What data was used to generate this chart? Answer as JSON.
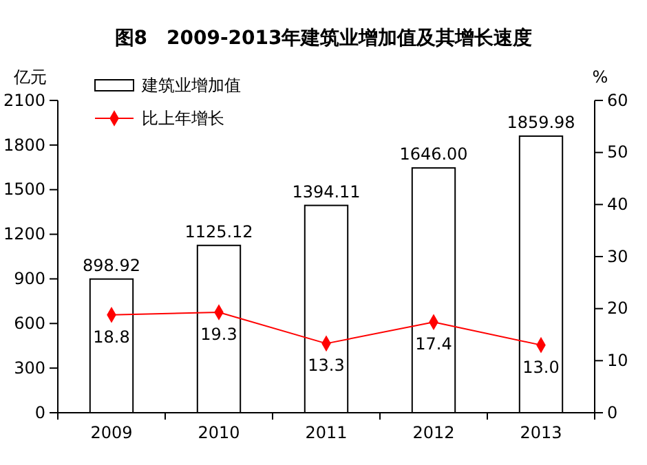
{
  "chart_data": {
    "type": "bar",
    "title": "图8　2009-2013年建筑业增加值及其增长速度",
    "ylabel": "亿元",
    "y2label": "%",
    "categories": [
      "2009",
      "2010",
      "2011",
      "2012",
      "2013"
    ],
    "series": [
      {
        "name": "建筑业增加值",
        "color": "#ffffff",
        "values": [
          898.92,
          1125.12,
          1394.11,
          1646.0,
          1859.98
        ],
        "value_labels": [
          "898.92",
          "1125.12",
          "1394.11",
          "1646.00",
          "1859.98"
        ]
      },
      {
        "name": "比上年增长",
        "type": "line",
        "axis": "y2",
        "color": "#ff0000",
        "marker": "diamond",
        "values": [
          18.8,
          19.3,
          13.3,
          17.4,
          13.0
        ],
        "value_labels": [
          "18.8",
          "19.3",
          "13.3",
          "17.4",
          "13.0"
        ]
      }
    ],
    "ylim": [
      0,
      2100
    ],
    "yticks": [
      0,
      300,
      600,
      900,
      1200,
      1500,
      1800,
      2100
    ],
    "y2lim": [
      0,
      60
    ],
    "y2ticks": [
      0,
      10,
      20,
      30,
      40,
      50,
      60
    ],
    "legend": "top left",
    "grid": false
  }
}
